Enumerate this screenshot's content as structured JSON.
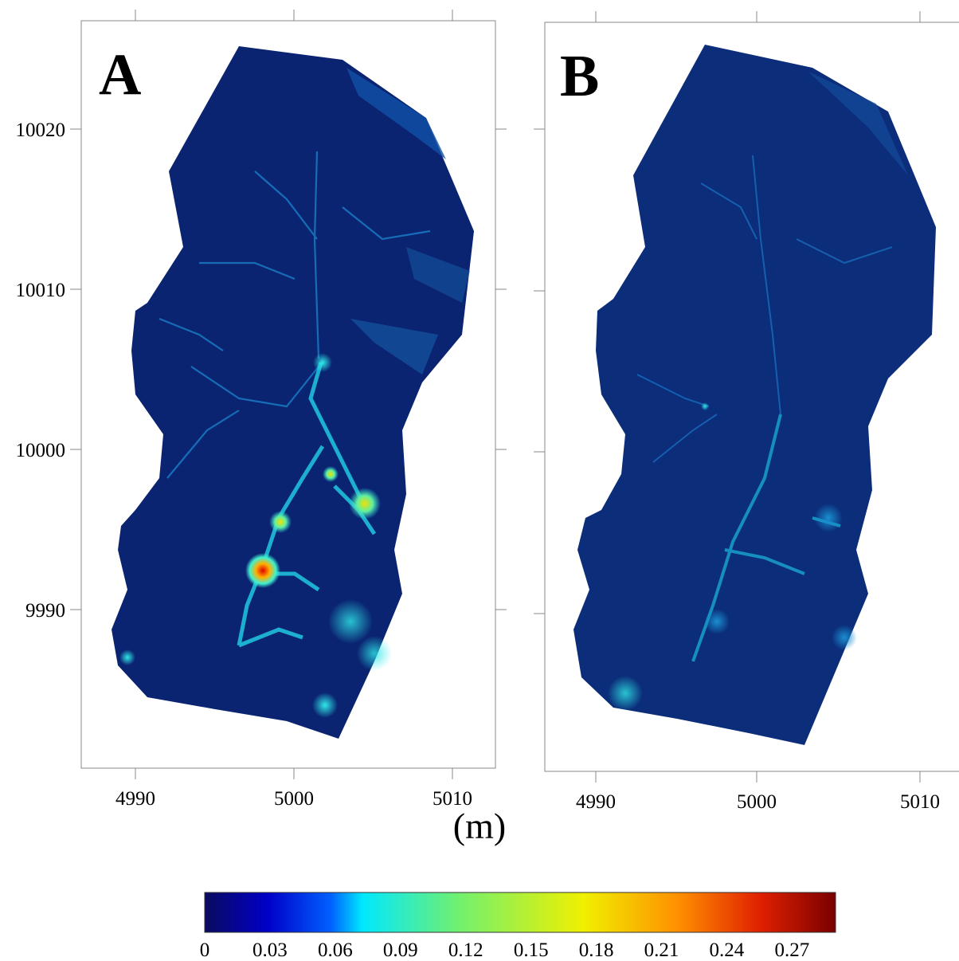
{
  "figure": {
    "unit_label": "(m)",
    "colormap": [
      "#00007f",
      "#0000ff",
      "#007fff",
      "#00ffff",
      "#7fff7f",
      "#ffff00",
      "#ff7f00",
      "#ff0000",
      "#7f0000"
    ],
    "background_value_color": "#0a2472"
  },
  "panels": [
    {
      "letter": "A",
      "x_ticks": [
        4990,
        5000,
        5010
      ],
      "y_ticks": [
        10020,
        10010,
        10000,
        9990
      ],
      "x_tick_labels": [
        "4990",
        "5000",
        "5010"
      ],
      "y_tick_labels": [
        "10020",
        "10010",
        "10000",
        "9990"
      ]
    },
    {
      "letter": "B",
      "x_ticks": [
        4990,
        5000,
        5010
      ],
      "x_tick_labels": [
        "4990",
        "5000",
        "5010"
      ]
    }
  ],
  "colorbar": {
    "min": 0,
    "max": 0.29,
    "tick_values": [
      0,
      0.03,
      0.06,
      0.09,
      0.12,
      0.15,
      0.18,
      0.21,
      0.24,
      0.27
    ],
    "tick_labels": [
      "0",
      "0.03",
      "0.06",
      "0.09",
      "0.12",
      "0.15",
      "0.18",
      "0.21",
      "0.24",
      "0.27"
    ]
  }
}
